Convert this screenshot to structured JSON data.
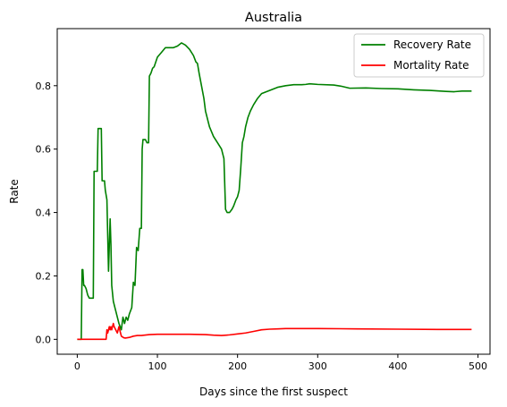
{
  "chart_data": {
    "type": "line",
    "title": "Australia",
    "xlabel": "Days since the first suspect",
    "ylabel": "Rate",
    "xlim": [
      -25,
      515
    ],
    "ylim": [
      -0.047,
      0.98
    ],
    "xticks": [
      0,
      100,
      200,
      300,
      400,
      500
    ],
    "yticks": [
      0.0,
      0.2,
      0.4,
      0.6,
      0.8
    ],
    "xtick_labels": [
      "0",
      "100",
      "200",
      "300",
      "400",
      "500"
    ],
    "ytick_labels": [
      "0.0",
      "0.2",
      "0.4",
      "0.6",
      "0.8"
    ],
    "grid": false,
    "legend_position": "top-right",
    "series": [
      {
        "name": "Recovery Rate",
        "color": "#008000",
        "x": [
          0,
          5,
          6,
          7,
          8,
          9,
          11,
          13,
          15,
          20,
          21,
          22,
          25,
          26,
          30,
          31,
          34,
          35,
          37,
          39,
          41,
          42,
          43,
          45,
          47,
          50,
          52,
          55,
          57,
          59,
          61,
          63,
          65,
          68,
          70,
          72,
          74,
          76,
          78,
          80,
          81,
          82,
          83,
          85,
          87,
          89,
          90,
          92,
          94,
          96,
          100,
          105,
          110,
          120,
          125,
          130,
          135,
          140,
          145,
          148,
          150,
          152,
          155,
          158,
          160,
          163,
          165,
          170,
          175,
          180,
          183,
          185,
          187,
          190,
          193,
          195,
          198,
          200,
          202,
          204,
          206,
          208,
          210,
          213,
          216,
          220,
          225,
          230,
          240,
          250,
          260,
          270,
          280,
          285,
          290,
          300,
          320,
          330,
          340,
          360,
          380,
          400,
          420,
          440,
          460,
          470,
          480,
          492
        ],
        "y": [
          0.0,
          0.0,
          0.22,
          0.22,
          0.17,
          0.17,
          0.16,
          0.14,
          0.13,
          0.13,
          0.53,
          0.53,
          0.53,
          0.665,
          0.665,
          0.5,
          0.5,
          0.47,
          0.44,
          0.215,
          0.38,
          0.3,
          0.17,
          0.12,
          0.1,
          0.07,
          0.05,
          0.03,
          0.07,
          0.05,
          0.07,
          0.06,
          0.08,
          0.1,
          0.18,
          0.17,
          0.29,
          0.28,
          0.35,
          0.35,
          0.6,
          0.63,
          0.63,
          0.63,
          0.62,
          0.62,
          0.83,
          0.84,
          0.855,
          0.86,
          0.89,
          0.905,
          0.92,
          0.92,
          0.925,
          0.935,
          0.928,
          0.915,
          0.895,
          0.875,
          0.87,
          0.84,
          0.8,
          0.76,
          0.72,
          0.69,
          0.67,
          0.64,
          0.62,
          0.6,
          0.57,
          0.41,
          0.4,
          0.4,
          0.41,
          0.42,
          0.44,
          0.45,
          0.47,
          0.54,
          0.62,
          0.64,
          0.67,
          0.7,
          0.72,
          0.74,
          0.76,
          0.775,
          0.785,
          0.795,
          0.8,
          0.803,
          0.803,
          0.804,
          0.806,
          0.804,
          0.802,
          0.798,
          0.792,
          0.793,
          0.791,
          0.79,
          0.787,
          0.785,
          0.782,
          0.781,
          0.783,
          0.783
        ]
      },
      {
        "name": "Mortality Rate",
        "color": "#ff0000",
        "x": [
          0,
          5,
          10,
          20,
          30,
          36,
          37,
          38,
          40,
          41,
          42,
          43,
          45,
          46,
          48,
          50,
          52,
          55,
          58,
          60,
          65,
          70,
          75,
          80,
          90,
          100,
          120,
          140,
          160,
          170,
          180,
          190,
          200,
          210,
          220,
          230,
          240,
          250,
          260,
          270,
          280,
          300,
          350,
          400,
          450,
          492
        ],
        "y": [
          0.0,
          0.0,
          0.0,
          0.0,
          0.0,
          0.0,
          0.03,
          0.02,
          0.04,
          0.03,
          0.04,
          0.03,
          0.05,
          0.04,
          0.03,
          0.02,
          0.04,
          0.01,
          0.005,
          0.004,
          0.006,
          0.01,
          0.012,
          0.012,
          0.015,
          0.016,
          0.016,
          0.016,
          0.015,
          0.013,
          0.012,
          0.014,
          0.017,
          0.02,
          0.025,
          0.03,
          0.032,
          0.033,
          0.034,
          0.034,
          0.034,
          0.034,
          0.033,
          0.032,
          0.031,
          0.031
        ]
      }
    ]
  }
}
